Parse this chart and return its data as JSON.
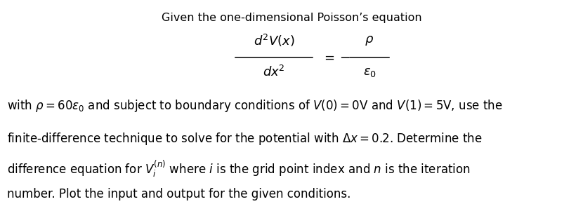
{
  "background_color": "#ffffff",
  "figsize": [
    8.3,
    3.01
  ],
  "dpi": 100,
  "title_text": "Given the one-dimensional Poisson’s equation",
  "equation_numerator": "$d^2V(x)$",
  "equation_denominator": "$dx^2$",
  "equation_rhs_num": "$\\rho$",
  "equation_rhs_den": "$\\epsilon_0$",
  "line1": "with $\\rho = 60\\epsilon_0$ and subject to boundary conditions of $V(0) = 0\\mathrm{V}$ and $V(1) = 5\\mathrm{V}$, use the",
  "line2": "finite-difference technique to solve for the potential with $\\Delta x = 0.2$. Determine the",
  "line3": "difference equation for $V_i^{(n)}$ where $i$ is the grid point index and $n$ is the iteration",
  "line4": "number. Plot the input and output for the given conditions.",
  "title_fontsize": 11.5,
  "body_fontsize": 12.0,
  "eq_fontsize": 13.0
}
